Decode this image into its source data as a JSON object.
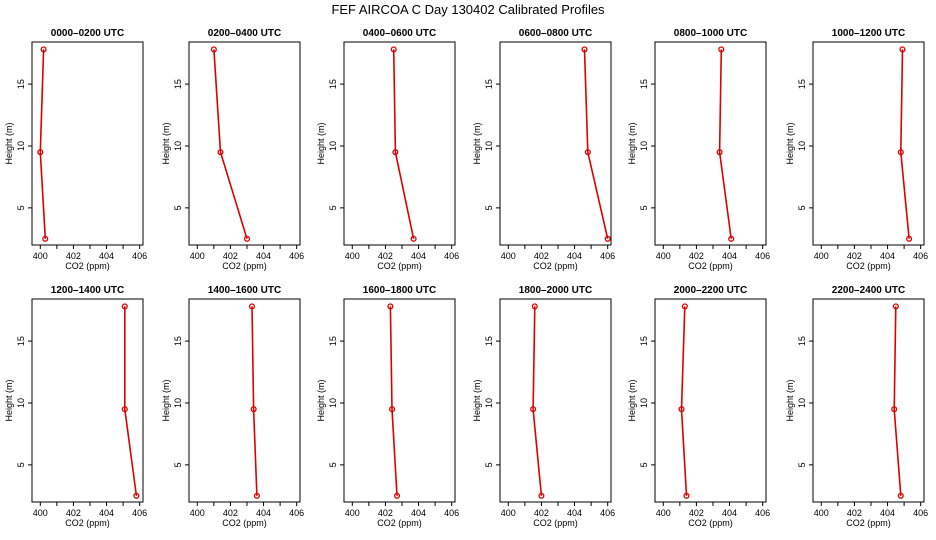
{
  "title": "FEF AIRCOA C  Day 130402  Calibrated Profiles",
  "colors": {
    "series": "#dd0000",
    "axis": "#000000",
    "background": "#ffffff"
  },
  "chart_data": [
    {
      "type": "line",
      "title": "0000–0200 UTC",
      "xlabel": "CO2 (ppm)",
      "ylabel": "Height (m)",
      "xlim": [
        399.5,
        406.2
      ],
      "ylim": [
        2.0,
        18.4
      ],
      "xticks": [
        "400",
        "402",
        "404",
        "406"
      ],
      "yticks": [
        "5",
        "10",
        "15"
      ],
      "series": [
        {
          "x": [
            400.3,
            400.0,
            400.2
          ],
          "y": [
            2.5,
            9.5,
            17.8
          ]
        }
      ]
    },
    {
      "type": "line",
      "title": "0200–0400 UTC",
      "xlabel": "CO2 (ppm)",
      "ylabel": "Height (m)",
      "xlim": [
        399.5,
        406.2
      ],
      "ylim": [
        2.0,
        18.4
      ],
      "xticks": [
        "400",
        "402",
        "404",
        "406"
      ],
      "yticks": [
        "5",
        "10",
        "15"
      ],
      "series": [
        {
          "x": [
            403.0,
            401.4,
            401.0
          ],
          "y": [
            2.5,
            9.5,
            17.8
          ]
        }
      ]
    },
    {
      "type": "line",
      "title": "0400–0600 UTC",
      "xlabel": "CO2 (ppm)",
      "ylabel": "Height (m)",
      "xlim": [
        399.5,
        406.2
      ],
      "ylim": [
        2.0,
        18.4
      ],
      "xticks": [
        "400",
        "402",
        "404",
        "406"
      ],
      "yticks": [
        "5",
        "10",
        "15"
      ],
      "series": [
        {
          "x": [
            403.7,
            402.6,
            402.5
          ],
          "y": [
            2.5,
            9.5,
            17.8
          ]
        }
      ]
    },
    {
      "type": "line",
      "title": "0600–0800 UTC",
      "xlabel": "CO2 (ppm)",
      "ylabel": "Height (m)",
      "xlim": [
        399.5,
        406.2
      ],
      "ylim": [
        2.0,
        18.4
      ],
      "xticks": [
        "400",
        "402",
        "404",
        "406"
      ],
      "yticks": [
        "5",
        "10",
        "15"
      ],
      "series": [
        {
          "x": [
            406.0,
            404.8,
            404.6
          ],
          "y": [
            2.5,
            9.5,
            17.8
          ]
        }
      ]
    },
    {
      "type": "line",
      "title": "0800–1000 UTC",
      "xlabel": "CO2 (ppm)",
      "ylabel": "Height (m)",
      "xlim": [
        399.5,
        406.2
      ],
      "ylim": [
        2.0,
        18.4
      ],
      "xticks": [
        "400",
        "402",
        "404",
        "406"
      ],
      "yticks": [
        "5",
        "10",
        "15"
      ],
      "series": [
        {
          "x": [
            404.1,
            403.4,
            403.5
          ],
          "y": [
            2.5,
            9.5,
            17.8
          ]
        }
      ]
    },
    {
      "type": "line",
      "title": "1000–1200 UTC",
      "xlabel": "CO2 (ppm)",
      "ylabel": "Height (m)",
      "xlim": [
        399.5,
        406.2
      ],
      "ylim": [
        2.0,
        18.4
      ],
      "xticks": [
        "400",
        "402",
        "404",
        "406"
      ],
      "yticks": [
        "5",
        "10",
        "15"
      ],
      "series": [
        {
          "x": [
            405.3,
            404.8,
            404.9
          ],
          "y": [
            2.5,
            9.5,
            17.8
          ]
        }
      ]
    },
    {
      "type": "line",
      "title": "1200–1400 UTC",
      "xlabel": "CO2 (ppm)",
      "ylabel": "Height (m)",
      "xlim": [
        399.5,
        406.2
      ],
      "ylim": [
        2.0,
        18.4
      ],
      "xticks": [
        "400",
        "402",
        "404",
        "406"
      ],
      "yticks": [
        "5",
        "10",
        "15"
      ],
      "series": [
        {
          "x": [
            405.8,
            405.1,
            405.1
          ],
          "y": [
            2.5,
            9.5,
            17.8
          ]
        }
      ]
    },
    {
      "type": "line",
      "title": "1400–1600 UTC",
      "xlabel": "CO2 (ppm)",
      "ylabel": "Height (m)",
      "xlim": [
        399.5,
        406.2
      ],
      "ylim": [
        2.0,
        18.4
      ],
      "xticks": [
        "400",
        "402",
        "404",
        "406"
      ],
      "yticks": [
        "5",
        "10",
        "15"
      ],
      "series": [
        {
          "x": [
            403.6,
            403.4,
            403.3
          ],
          "y": [
            2.5,
            9.5,
            17.8
          ]
        }
      ]
    },
    {
      "type": "line",
      "title": "1600–1800 UTC",
      "xlabel": "CO2 (ppm)",
      "ylabel": "Height (m)",
      "xlim": [
        399.5,
        406.2
      ],
      "ylim": [
        2.0,
        18.4
      ],
      "xticks": [
        "400",
        "402",
        "404",
        "406"
      ],
      "yticks": [
        "5",
        "10",
        "15"
      ],
      "series": [
        {
          "x": [
            402.7,
            402.4,
            402.3
          ],
          "y": [
            2.5,
            9.5,
            17.8
          ]
        }
      ]
    },
    {
      "type": "line",
      "title": "1800–2000 UTC",
      "xlabel": "CO2 (ppm)",
      "ylabel": "Height (m)",
      "xlim": [
        399.5,
        406.2
      ],
      "ylim": [
        2.0,
        18.4
      ],
      "xticks": [
        "400",
        "402",
        "404",
        "406"
      ],
      "yticks": [
        "5",
        "10",
        "15"
      ],
      "series": [
        {
          "x": [
            402.0,
            401.5,
            401.6
          ],
          "y": [
            2.5,
            9.5,
            17.8
          ]
        }
      ]
    },
    {
      "type": "line",
      "title": "2000–2200 UTC",
      "xlabel": "CO2 (ppm)",
      "ylabel": "Height (m)",
      "xlim": [
        399.5,
        406.2
      ],
      "ylim": [
        2.0,
        18.4
      ],
      "xticks": [
        "400",
        "402",
        "404",
        "406"
      ],
      "yticks": [
        "5",
        "10",
        "15"
      ],
      "series": [
        {
          "x": [
            401.4,
            401.1,
            401.3
          ],
          "y": [
            2.5,
            9.5,
            17.8
          ]
        }
      ]
    },
    {
      "type": "line",
      "title": "2200–2400 UTC",
      "xlabel": "CO2 (ppm)",
      "ylabel": "Height (m)",
      "xlim": [
        399.5,
        406.2
      ],
      "ylim": [
        2.0,
        18.4
      ],
      "xticks": [
        "400",
        "402",
        "404",
        "406"
      ],
      "yticks": [
        "5",
        "10",
        "15"
      ],
      "series": [
        {
          "x": [
            404.8,
            404.4,
            404.5
          ],
          "y": [
            2.5,
            9.5,
            17.8
          ]
        }
      ]
    }
  ]
}
